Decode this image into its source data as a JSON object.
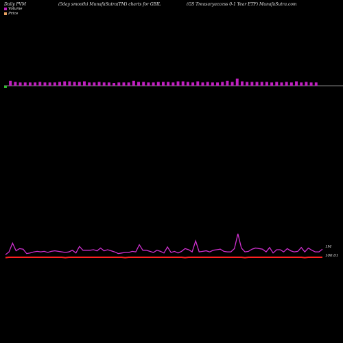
{
  "header": {
    "left": "Daily PVM",
    "middle": "(5day smooth) MunafaSutra(TM) charts for GBIL",
    "right": "(GS Treasuryaccess 0-1 Year ETF) MunafaSutra.com"
  },
  "legend": {
    "volume_label": "Volume",
    "price_label": "Price",
    "volume_color": "#c020c0",
    "price_color": "#e8a060"
  },
  "colors": {
    "background": "#000000",
    "volume_bar_up": "#c020c0",
    "volume_bar_down": "#30c030",
    "volume_line": "#d030d0",
    "price_line": "#ff2020",
    "baseline": "#b0b0b0"
  },
  "chart_data": [
    {
      "type": "bar",
      "name": "volume-bars",
      "values": [
        0.9,
        0.9,
        0.7,
        0.6,
        0.6,
        0.6,
        0.6,
        0.7,
        0.6,
        0.6,
        0.6,
        0.7,
        0.8,
        0.8,
        0.7,
        0.7,
        0.8,
        0.6,
        0.6,
        0.7,
        0.6,
        0.6,
        0.5,
        0.6,
        0.6,
        0.6,
        0.9,
        0.7,
        0.7,
        0.6,
        0.6,
        0.7,
        0.7,
        0.7,
        0.6,
        0.8,
        0.8,
        0.7,
        0.6,
        0.8,
        0.6,
        0.7,
        0.6,
        0.6,
        0.7,
        0.9,
        0.7,
        1.3,
        0.8,
        0.7,
        0.7,
        0.7,
        0.7,
        0.7,
        0.6,
        0.7,
        0.6,
        0.7,
        0.6,
        0.8,
        0.6,
        0.7,
        0.6,
        0.6
      ],
      "first_bar_down": true
    },
    {
      "type": "line",
      "series": [
        {
          "name": "Volume",
          "values": [
            0.3,
            0.55,
            1.35,
            0.65,
            0.85,
            0.8,
            0.4,
            0.45,
            0.55,
            0.6,
            0.55,
            0.6,
            0.5,
            0.6,
            0.65,
            0.6,
            0.55,
            0.5,
            0.55,
            0.7,
            0.45,
            1.05,
            0.7,
            0.7,
            0.7,
            0.75,
            0.65,
            0.9,
            0.65,
            0.75,
            0.65,
            0.55,
            0.4,
            0.45,
            0.5,
            0.5,
            0.6,
            0.55,
            1.2,
            0.7,
            0.7,
            0.6,
            0.5,
            0.7,
            0.6,
            0.45,
            1.0,
            0.5,
            0.6,
            0.45,
            0.6,
            0.85,
            0.75,
            0.55,
            1.55,
            0.55,
            0.6,
            0.65,
            0.55,
            0.7,
            0.75,
            0.8,
            0.6,
            0.55,
            0.55,
            0.85,
            2.2,
            0.9,
            0.55,
            0.6,
            0.8,
            0.9,
            0.85,
            0.8,
            0.55,
            0.95,
            0.45,
            0.75,
            0.75,
            0.55,
            0.85,
            0.65,
            0.55,
            0.6,
            0.95,
            0.55,
            0.9,
            0.7,
            0.55,
            0.55,
            0.8
          ]
        },
        {
          "name": "Price",
          "values": [
            100.01,
            100.01,
            100.01,
            100.01,
            100.01,
            100.01,
            100.01,
            100.01,
            100.01,
            100.01,
            100.01,
            100.01,
            100.01,
            100.01,
            100.01,
            100.01,
            100.01,
            100.01,
            100.01,
            100.01,
            100.01,
            100.01,
            100.01,
            100.01,
            100.01,
            100.01,
            100.01,
            100.01,
            100.01,
            100.01,
            100.01,
            100.01,
            100.01,
            100.01,
            100.01,
            100.01,
            100.01,
            100.01,
            100.01,
            100.01,
            100.01,
            100.01,
            100.01,
            100.01,
            100.01,
            100.01,
            100.01,
            100.01,
            100.01,
            100.01,
            100.01,
            100.01,
            100.01,
            100.01,
            100.01,
            100.01,
            100.01,
            100.01,
            100.01,
            100.01,
            100.01,
            100.01,
            100.01,
            100.01,
            100.01,
            100.01,
            100.01,
            100.01,
            100.01,
            100.01,
            100.01,
            100.01,
            100.01,
            100.01,
            100.01,
            100.01,
            100.01,
            100.01,
            100.01,
            100.01,
            100.01,
            100.01,
            100.01,
            100.01,
            100.01,
            100.01,
            100.01,
            100.01,
            100.01,
            100.01,
            100.01
          ]
        }
      ],
      "right_labels": [
        "1M",
        "100.01"
      ]
    }
  ]
}
